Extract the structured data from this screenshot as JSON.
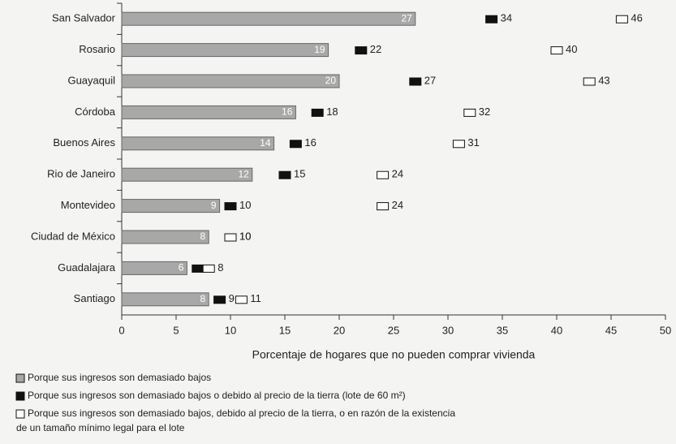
{
  "chart_data": {
    "type": "bar",
    "categories": [
      "San Salvador",
      "Rosario",
      "Guayaquil",
      "Córdoba",
      "Buenos Aires",
      "Rio de Janeiro",
      "Montevideo",
      "Ciudad de México",
      "Guadalajara",
      "Santiago"
    ],
    "series": [
      {
        "name": "Porque sus ingresos son demasiado bajos",
        "color": "#a8a8a8",
        "values": [
          27,
          19,
          20,
          16,
          14,
          12,
          9,
          8,
          6,
          8
        ]
      },
      {
        "name": "Porque sus ingresos son demasiado bajos o debido al precio de la tierra (lote de 60 m²)",
        "color": "#111111",
        "values": [
          34,
          22,
          27,
          18,
          16,
          15,
          10,
          10,
          7,
          9
        ],
        "value_labels": [
          "34",
          "22",
          "27",
          "18",
          "16",
          "15",
          "10",
          "10",
          null,
          "9"
        ]
      },
      {
        "name": "Porque sus ingresos son demasiado bajos, debido al precio de la tierra, o en razón de la existencia de un tamaño mínimo legal para el lote",
        "color": "#ffffff",
        "values": [
          46,
          40,
          43,
          32,
          31,
          24,
          24,
          10,
          8,
          11
        ]
      }
    ],
    "xlabel": "Porcentaje de hogares que no pueden comprar vivienda",
    "xlim": [
      0,
      50
    ],
    "xticks": [
      0,
      5,
      10,
      15,
      20,
      25,
      30,
      35,
      40,
      45,
      50
    ]
  }
}
